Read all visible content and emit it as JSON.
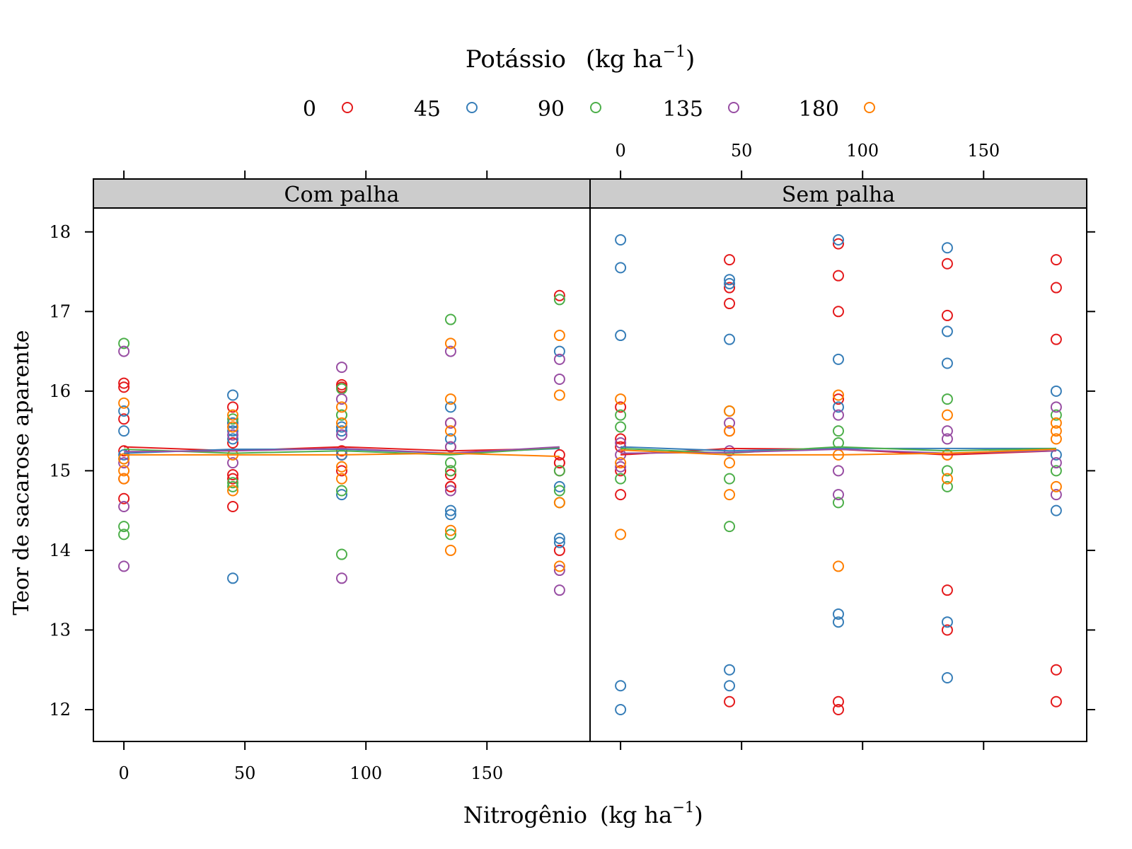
{
  "chart_data": {
    "type": "scatter",
    "title": "",
    "legend": {
      "title": "Potássio (kg ha−1)",
      "title_main": "Potássio",
      "title_unit_left": "(kg  ha",
      "title_unit_exp": "−1",
      "title_unit_right": ")",
      "placement": "top",
      "entries": [
        {
          "label": "0",
          "color": "#e41a1c"
        },
        {
          "label": "45",
          "color": "#377eb8"
        },
        {
          "label": "90",
          "color": "#4daf4a"
        },
        {
          "label": "135",
          "color": "#984ea3"
        },
        {
          "label": "180",
          "color": "#ff7f00"
        }
      ]
    },
    "xlabel": "Nitrogênio (kg ha−1)",
    "xlabel_main": "Nitrogênio",
    "xlabel_unit_left": "(kg  ha",
    "xlabel_unit_exp": "−1",
    "xlabel_unit_right": ")",
    "ylabel": "Teor de sacarose aparente",
    "xlim": [
      -12.6,
      192.6
    ],
    "ylim": [
      11.6,
      18.3
    ],
    "xticks": [
      "0",
      "50",
      "100",
      "150"
    ],
    "xtick_values": [
      0,
      50,
      100,
      150
    ],
    "yticks": [
      "12",
      "13",
      "14",
      "15",
      "16",
      "17",
      "18"
    ],
    "ytick_values": [
      12,
      13,
      14,
      15,
      16,
      17,
      18
    ],
    "grid": false,
    "panels": [
      {
        "strip": "Com palha",
        "points": {
          "0": [
            [
              0,
              15.25
            ],
            [
              0,
              15.65
            ],
            [
              0,
              16.05
            ],
            [
              0,
              14.65
            ],
            [
              0,
              14.9
            ],
            [
              0,
              16.1
            ],
            [
              45,
              15.8
            ],
            [
              45,
              15.35
            ],
            [
              45,
              14.95
            ],
            [
              45,
              14.9
            ],
            [
              45,
              14.55
            ],
            [
              45,
              15.6
            ],
            [
              90,
              16.05
            ],
            [
              90,
              15.2
            ],
            [
              90,
              15.25
            ],
            [
              90,
              15.0
            ],
            [
              90,
              16.08
            ],
            [
              90,
              15.2
            ],
            [
              135,
              15.0
            ],
            [
              135,
              14.8
            ],
            [
              135,
              14.95
            ],
            [
              135,
              15.3
            ],
            [
              135,
              14.8
            ],
            [
              135,
              15.6
            ],
            [
              180,
              17.2
            ],
            [
              180,
              15.2
            ],
            [
              180,
              15.1
            ],
            [
              180,
              14.0
            ],
            [
              180,
              15.0
            ],
            [
              180,
              15.1
            ]
          ],
          "45": [
            [
              0,
              15.75
            ],
            [
              0,
              15.5
            ],
            [
              0,
              15.2
            ],
            [
              45,
              15.95
            ],
            [
              45,
              15.6
            ],
            [
              45,
              15.4
            ],
            [
              45,
              13.65
            ],
            [
              45,
              15.5
            ],
            [
              90,
              15.55
            ],
            [
              90,
              14.7
            ],
            [
              90,
              15.5
            ],
            [
              90,
              15.2
            ],
            [
              135,
              15.8
            ],
            [
              135,
              14.5
            ],
            [
              135,
              14.45
            ],
            [
              135,
              15.4
            ],
            [
              180,
              16.5
            ],
            [
              180,
              14.8
            ],
            [
              180,
              14.15
            ],
            [
              180,
              14.1
            ]
          ],
          "90": [
            [
              0,
              16.6
            ],
            [
              0,
              14.3
            ],
            [
              0,
              14.2
            ],
            [
              0,
              15.15
            ],
            [
              45,
              15.65
            ],
            [
              45,
              14.85
            ],
            [
              45,
              14.8
            ],
            [
              90,
              15.7
            ],
            [
              90,
              16.03
            ],
            [
              90,
              15.7
            ],
            [
              90,
              14.75
            ],
            [
              90,
              13.95
            ],
            [
              135,
              16.9
            ],
            [
              135,
              15.1
            ],
            [
              135,
              14.2
            ],
            [
              135,
              15.0
            ],
            [
              180,
              17.15
            ],
            [
              180,
              14.75
            ],
            [
              180,
              15.0
            ],
            [
              180,
              14.6
            ]
          ],
          "135": [
            [
              0,
              16.5
            ],
            [
              0,
              14.55
            ],
            [
              0,
              13.8
            ],
            [
              0,
              15.1
            ],
            [
              45,
              15.1
            ],
            [
              45,
              15.45
            ],
            [
              45,
              15.55
            ],
            [
              90,
              16.3
            ],
            [
              90,
              15.9
            ],
            [
              90,
              15.45
            ],
            [
              90,
              13.65
            ],
            [
              135,
              16.5
            ],
            [
              135,
              15.6
            ],
            [
              135,
              14.75
            ],
            [
              135,
              15.3
            ],
            [
              180,
              16.4
            ],
            [
              180,
              16.15
            ],
            [
              180,
              13.75
            ],
            [
              180,
              13.5
            ]
          ],
          "180": [
            [
              0,
              15.85
            ],
            [
              0,
              15.0
            ],
            [
              0,
              14.9
            ],
            [
              0,
              15.15
            ],
            [
              45,
              15.7
            ],
            [
              45,
              15.55
            ],
            [
              45,
              14.75
            ],
            [
              45,
              15.2
            ],
            [
              90,
              15.8
            ],
            [
              90,
              15.05
            ],
            [
              90,
              14.9
            ],
            [
              90,
              15.6
            ],
            [
              135,
              16.6
            ],
            [
              135,
              15.9
            ],
            [
              135,
              15.5
            ],
            [
              135,
              14.25
            ],
            [
              135,
              14.0
            ],
            [
              180,
              16.7
            ],
            [
              180,
              15.95
            ],
            [
              180,
              13.8
            ],
            [
              180,
              14.6
            ]
          ]
        },
        "lines": {
          "0": [
            [
              0,
              15.3
            ],
            [
              45,
              15.25
            ],
            [
              90,
              15.3
            ],
            [
              135,
              15.25
            ],
            [
              180,
              15.28
            ]
          ],
          "45": [
            [
              0,
              15.22
            ],
            [
              45,
              15.27
            ],
            [
              90,
              15.27
            ],
            [
              135,
              15.22
            ],
            [
              180,
              15.28
            ]
          ],
          "90": [
            [
              0,
              15.27
            ],
            [
              45,
              15.22
            ],
            [
              90,
              15.25
            ],
            [
              135,
              15.2
            ],
            [
              180,
              15.29
            ]
          ],
          "135": [
            [
              0,
              15.24
            ],
            [
              45,
              15.25
            ],
            [
              90,
              15.28
            ],
            [
              135,
              15.22
            ],
            [
              180,
              15.3
            ]
          ],
          "180": [
            [
              0,
              15.2
            ],
            [
              45,
              15.2
            ],
            [
              90,
              15.2
            ],
            [
              135,
              15.22
            ],
            [
              180,
              15.18
            ]
          ]
        }
      },
      {
        "strip": "Sem palha",
        "points": {
          "0": [
            [
              0,
              15.8
            ],
            [
              0,
              15.4
            ],
            [
              0,
              15.0
            ],
            [
              0,
              14.7
            ],
            [
              0,
              15.3
            ],
            [
              45,
              17.65
            ],
            [
              45,
              17.3
            ],
            [
              45,
              17.1
            ],
            [
              45,
              15.5
            ],
            [
              45,
              12.1
            ],
            [
              90,
              17.85
            ],
            [
              90,
              17.45
            ],
            [
              90,
              17.0
            ],
            [
              90,
              15.9
            ],
            [
              90,
              12.1
            ],
            [
              90,
              12.0
            ],
            [
              135,
              17.6
            ],
            [
              135,
              16.95
            ],
            [
              135,
              15.2
            ],
            [
              135,
              13.5
            ],
            [
              135,
              13.0
            ],
            [
              180,
              17.65
            ],
            [
              180,
              17.3
            ],
            [
              180,
              16.65
            ],
            [
              180,
              12.5
            ],
            [
              180,
              12.1
            ]
          ],
          "45": [
            [
              0,
              17.9
            ],
            [
              0,
              17.55
            ],
            [
              0,
              16.7
            ],
            [
              0,
              12.3
            ],
            [
              0,
              12.0
            ],
            [
              45,
              17.4
            ],
            [
              45,
              17.35
            ],
            [
              45,
              16.65
            ],
            [
              45,
              12.5
            ],
            [
              45,
              12.3
            ],
            [
              90,
              17.9
            ],
            [
              90,
              16.4
            ],
            [
              90,
              15.8
            ],
            [
              90,
              13.2
            ],
            [
              90,
              13.1
            ],
            [
              135,
              17.8
            ],
            [
              135,
              16.75
            ],
            [
              135,
              16.35
            ],
            [
              135,
              13.1
            ],
            [
              135,
              12.4
            ],
            [
              180,
              16.0
            ],
            [
              180,
              15.2
            ],
            [
              180,
              14.5
            ]
          ],
          "90": [
            [
              0,
              15.7
            ],
            [
              0,
              15.55
            ],
            [
              0,
              14.9
            ],
            [
              45,
              15.75
            ],
            [
              45,
              14.9
            ],
            [
              45,
              14.3
            ],
            [
              90,
              15.5
            ],
            [
              90,
              15.35
            ],
            [
              90,
              14.6
            ],
            [
              135,
              15.9
            ],
            [
              135,
              15.0
            ],
            [
              135,
              14.8
            ],
            [
              180,
              15.7
            ],
            [
              180,
              15.0
            ]
          ],
          "135": [
            [
              0,
              15.35
            ],
            [
              0,
              15.2
            ],
            [
              0,
              15.05
            ],
            [
              45,
              15.6
            ],
            [
              45,
              15.25
            ],
            [
              90,
              15.7
            ],
            [
              90,
              15.0
            ],
            [
              90,
              14.7
            ],
            [
              135,
              15.5
            ],
            [
              135,
              15.4
            ],
            [
              180,
              15.8
            ],
            [
              180,
              15.1
            ],
            [
              180,
              14.7
            ]
          ],
          "180": [
            [
              0,
              15.9
            ],
            [
              0,
              15.1
            ],
            [
              0,
              14.2
            ],
            [
              45,
              15.75
            ],
            [
              45,
              15.1
            ],
            [
              45,
              14.7
            ],
            [
              45,
              15.5
            ],
            [
              90,
              15.95
            ],
            [
              90,
              15.2
            ],
            [
              90,
              13.8
            ],
            [
              135,
              15.7
            ],
            [
              135,
              15.2
            ],
            [
              135,
              14.9
            ],
            [
              180,
              15.6
            ],
            [
              180,
              15.5
            ],
            [
              180,
              14.8
            ],
            [
              180,
              15.4
            ]
          ]
        },
        "lines": {
          "0": [
            [
              0,
              15.2
            ],
            [
              45,
              15.28
            ],
            [
              90,
              15.27
            ],
            [
              135,
              15.2
            ],
            [
              180,
              15.25
            ]
          ],
          "45": [
            [
              0,
              15.3
            ],
            [
              45,
              15.25
            ],
            [
              90,
              15.28
            ],
            [
              135,
              15.28
            ],
            [
              180,
              15.28
            ]
          ],
          "90": [
            [
              0,
              15.28
            ],
            [
              45,
              15.22
            ],
            [
              90,
              15.3
            ],
            [
              135,
              15.25
            ],
            [
              180,
              15.28
            ]
          ],
          "135": [
            [
              0,
              15.22
            ],
            [
              45,
              15.23
            ],
            [
              90,
              15.27
            ],
            [
              135,
              15.22
            ],
            [
              180,
              15.25
            ]
          ],
          "180": [
            [
              0,
              15.26
            ],
            [
              45,
              15.2
            ],
            [
              90,
              15.2
            ],
            [
              135,
              15.22
            ],
            [
              180,
              15.27
            ]
          ]
        }
      }
    ]
  }
}
